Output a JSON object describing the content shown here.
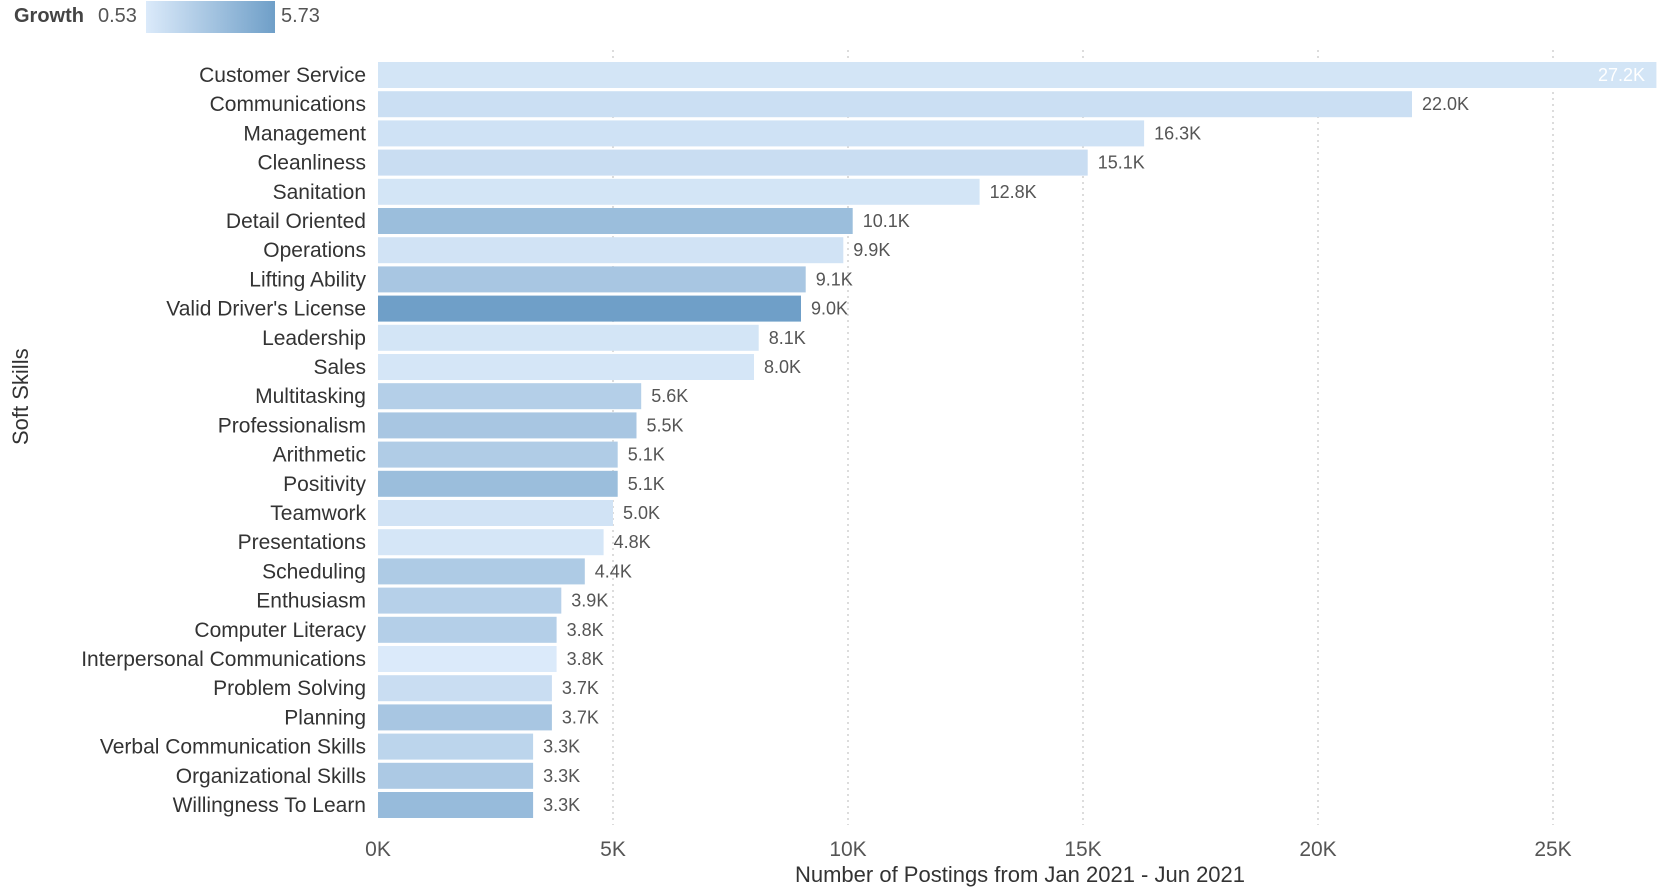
{
  "legend": {
    "title": "Growth",
    "min_label": "0.53",
    "max_label": "5.73",
    "min_color": "#dbeafa",
    "max_color": "#6f9fc8"
  },
  "chart_data": {
    "type": "bar",
    "orientation": "horizontal",
    "xlabel": "Number of Postings from Jan 2021 - Jun 2021",
    "ylabel": "Soft Skills",
    "xlim": [
      0,
      27200
    ],
    "x_ticks": [
      {
        "value": 0,
        "label": "0K"
      },
      {
        "value": 5000,
        "label": "5K"
      },
      {
        "value": 10000,
        "label": "10K"
      },
      {
        "value": 15000,
        "label": "15K"
      },
      {
        "value": 20000,
        "label": "20K"
      },
      {
        "value": 25000,
        "label": "25K"
      }
    ],
    "grid": "vertical-dotted",
    "legend_position": "top-left",
    "color_encoding": "Growth",
    "bars": [
      {
        "category": "Customer Service",
        "value": 27200,
        "label": "27.2K",
        "growth": 0.9
      },
      {
        "category": "Communications",
        "value": 22000,
        "label": "22.0K",
        "growth": 1.3
      },
      {
        "category": "Management",
        "value": 16300,
        "label": "16.3K",
        "growth": 1.1
      },
      {
        "category": "Cleanliness",
        "value": 15100,
        "label": "15.1K",
        "growth": 1.4
      },
      {
        "category": "Sanitation",
        "value": 12800,
        "label": "12.8K",
        "growth": 0.9
      },
      {
        "category": "Detail Oriented",
        "value": 10100,
        "label": "10.1K",
        "growth": 3.6
      },
      {
        "category": "Operations",
        "value": 9900,
        "label": "9.9K",
        "growth": 1.0
      },
      {
        "category": "Lifting Ability",
        "value": 9100,
        "label": "9.1K",
        "growth": 3.0
      },
      {
        "category": "Valid Driver's License",
        "value": 9000,
        "label": "9.0K",
        "growth": 5.73
      },
      {
        "category": "Leadership",
        "value": 8100,
        "label": "8.1K",
        "growth": 0.9
      },
      {
        "category": "Sales",
        "value": 8000,
        "label": "8.0K",
        "growth": 0.8
      },
      {
        "category": "Multitasking",
        "value": 5600,
        "label": "5.6K",
        "growth": 2.4
      },
      {
        "category": "Professionalism",
        "value": 5500,
        "label": "5.5K",
        "growth": 3.0
      },
      {
        "category": "Arithmetic",
        "value": 5100,
        "label": "5.1K",
        "growth": 2.6
      },
      {
        "category": "Positivity",
        "value": 5100,
        "label": "5.1K",
        "growth": 3.6
      },
      {
        "category": "Teamwork",
        "value": 5000,
        "label": "5.0K",
        "growth": 1.0
      },
      {
        "category": "Presentations",
        "value": 4800,
        "label": "4.8K",
        "growth": 0.8
      },
      {
        "category": "Scheduling",
        "value": 4400,
        "label": "4.4K",
        "growth": 2.7
      },
      {
        "category": "Enthusiasm",
        "value": 3900,
        "label": "3.9K",
        "growth": 2.3
      },
      {
        "category": "Computer Literacy",
        "value": 3800,
        "label": "3.8K",
        "growth": 2.4
      },
      {
        "category": "Interpersonal Communications",
        "value": 3800,
        "label": "3.8K",
        "growth": 0.53
      },
      {
        "category": "Problem Solving",
        "value": 3700,
        "label": "3.7K",
        "growth": 1.4
      },
      {
        "category": "Planning",
        "value": 3700,
        "label": "3.7K",
        "growth": 3.0
      },
      {
        "category": "Verbal Communication Skills",
        "value": 3300,
        "label": "3.3K",
        "growth": 2.0
      },
      {
        "category": "Organizational Skills",
        "value": 3300,
        "label": "3.3K",
        "growth": 2.8
      },
      {
        "category": "Willingness To Learn",
        "value": 3300,
        "label": "3.3K",
        "growth": 3.8
      }
    ]
  }
}
